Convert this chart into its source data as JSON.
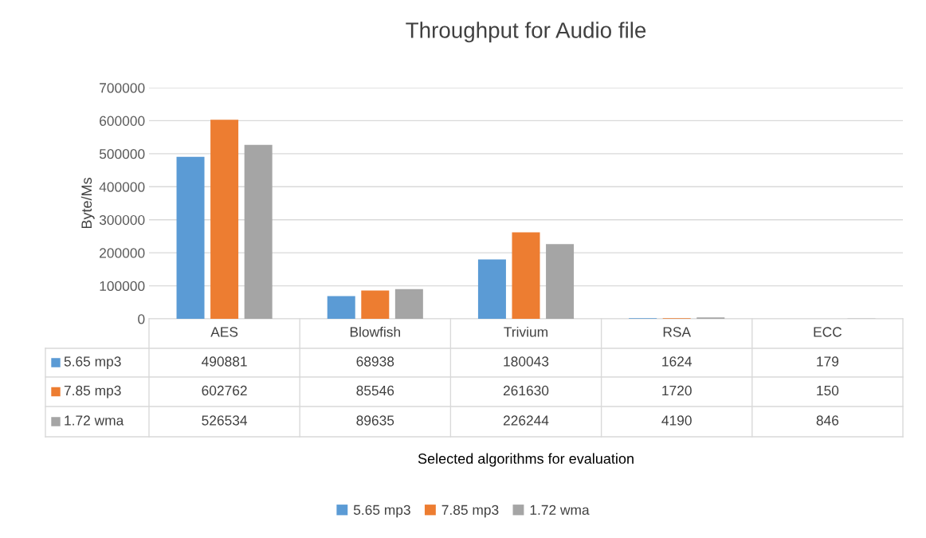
{
  "chart_data": {
    "type": "bar",
    "title": "Throughput for Audio file",
    "annotations": [
      "Selected algorithms for evaluation"
    ],
    "ylabel": "Byte/Ms",
    "categories": [
      "AES",
      "Blowfish",
      "Trivium",
      "RSA",
      "ECC"
    ],
    "series": [
      {
        "name": "5.65 mp3",
        "color": "#5b9bd5",
        "values": [
          490881,
          68938,
          180043,
          1624,
          179
        ]
      },
      {
        "name": "7.85 mp3",
        "color": "#ed7d31",
        "values": [
          602762,
          85546,
          261630,
          1720,
          150
        ]
      },
      {
        "name": "1.72 wma",
        "color": "#a5a5a5",
        "values": [
          526534,
          89635,
          226244,
          4190,
          846
        ]
      }
    ],
    "ylim": [
      0,
      700000
    ],
    "yticks": [
      0,
      100000,
      200000,
      300000,
      400000,
      500000,
      600000,
      700000
    ],
    "grid": "y",
    "legend": "bottom",
    "data_labels": true
  }
}
